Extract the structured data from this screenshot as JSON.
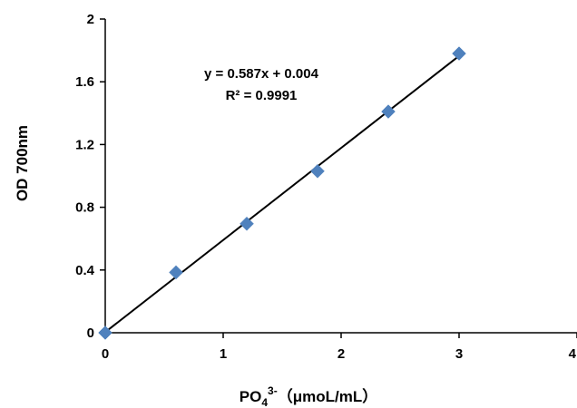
{
  "chart_data": {
    "type": "scatter",
    "x": [
      0,
      0.6,
      1.2,
      1.8,
      2.4,
      3.0
    ],
    "y": [
      0,
      0.385,
      0.695,
      1.03,
      1.41,
      1.78
    ],
    "xlim": [
      0,
      4
    ],
    "ylim": [
      0,
      2
    ],
    "xticks": [
      "0",
      "1",
      "2",
      "3",
      "4"
    ],
    "yticks": [
      "0",
      "0.4",
      "0.8",
      "1.2",
      "1.6",
      "2"
    ],
    "xlabel_main": "PO",
    "xlabel_sub": "4",
    "xlabel_sup": "3-",
    "xlabel_unit": "（μmoL/mL）",
    "ylabel": "OD 700nm",
    "trendline": {
      "slope": 0.587,
      "intercept": 0.004,
      "x_range": [
        0,
        3
      ]
    },
    "equation_label": "y = 0.587x + 0.004",
    "r2_label": "R² = 0.9991",
    "marker_color": "#4F81BD",
    "line_color": "#000000",
    "grid": false,
    "legend": "none"
  }
}
